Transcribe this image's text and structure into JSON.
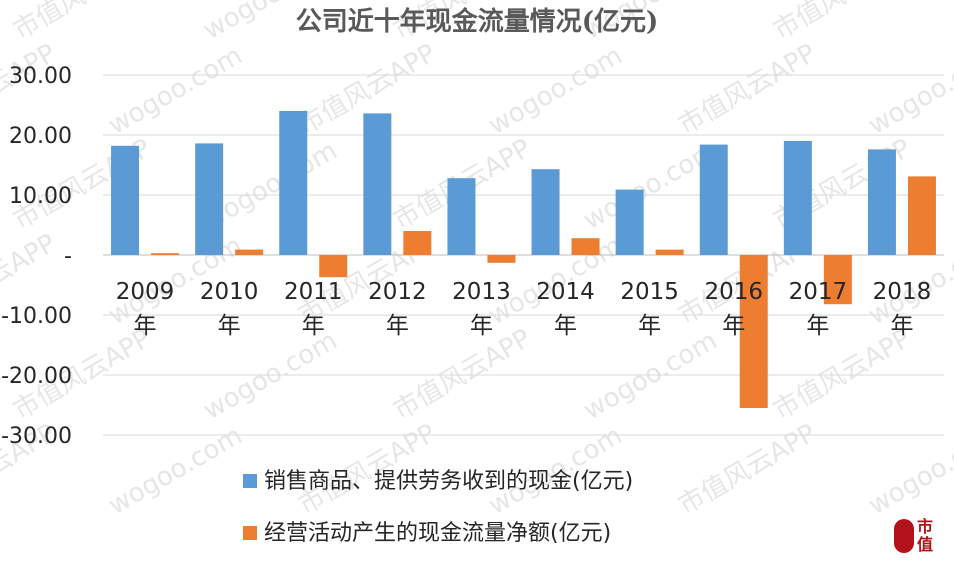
{
  "chart_data": {
    "type": "bar",
    "title": "公司近十年现金流量情况(亿元)",
    "categories": [
      "2009年",
      "2010年",
      "2011年",
      "2012年",
      "2013年",
      "2014年",
      "2015年",
      "2016年",
      "2017年",
      "2018年"
    ],
    "category_years": [
      "2009",
      "2010",
      "2011",
      "2012",
      "2013",
      "2014",
      "2015",
      "2016",
      "2017",
      "2018"
    ],
    "category_suffix": "年",
    "series": [
      {
        "name": "销售商品、提供劳务收到的现金(亿元)",
        "color": "#5b9bd5",
        "values": [
          18.2,
          18.6,
          24.0,
          23.6,
          12.8,
          14.3,
          10.9,
          18.4,
          19.0,
          17.6
        ]
      },
      {
        "name": "经营活动产生的现金流量净额(亿元)",
        "color": "#ed7d31",
        "values": [
          0.3,
          0.9,
          -3.7,
          4.0,
          -1.3,
          2.8,
          0.9,
          -25.5,
          -8.2,
          13.1
        ]
      }
    ],
    "ylim": [
      -30,
      30
    ],
    "yticks": [
      30,
      20,
      10,
      0,
      -10,
      -20,
      -30
    ],
    "ytick_labels": [
      "30.00",
      "20.00",
      "10.00",
      "-",
      "-10.00",
      "-20.00",
      "-30.00"
    ],
    "grid": true,
    "legend_position": "bottom",
    "xlabel": "",
    "ylabel": ""
  },
  "watermark": {
    "text_app": "市值风云APP",
    "text_site": "wogoo.com"
  },
  "logo": {
    "text": "市值"
  }
}
